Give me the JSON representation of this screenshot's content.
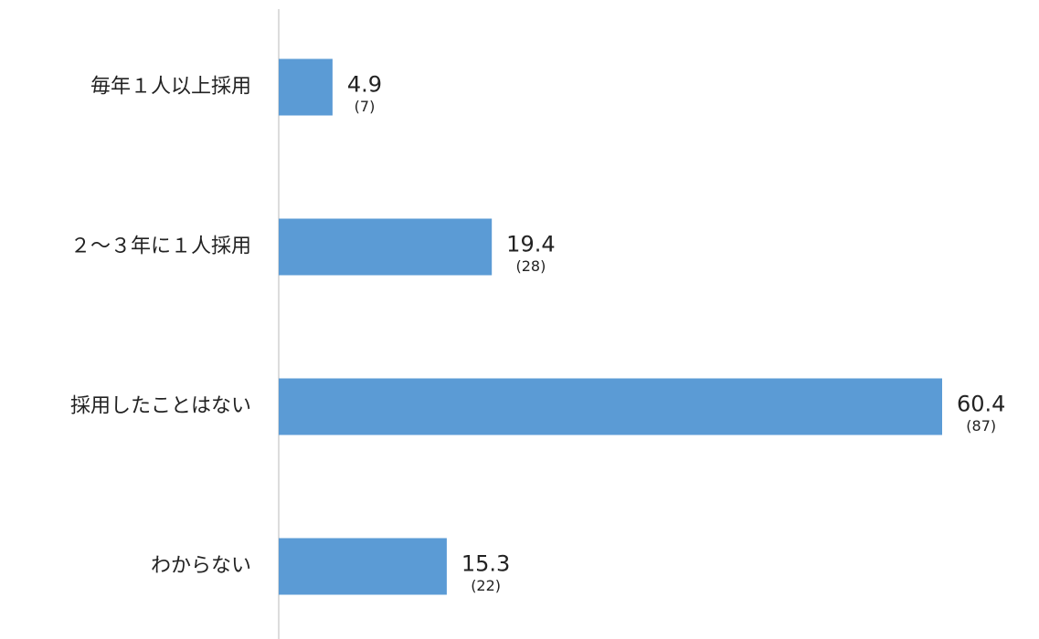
{
  "chart_data": {
    "type": "hbar",
    "categories": [
      "毎年１人以上採用",
      "２～３年に１人採用",
      "採用したことはない",
      "わからない"
    ],
    "values": [
      4.9,
      19.4,
      60.4,
      15.3
    ],
    "count_labels": [
      "(7)",
      "(28)",
      "(87)",
      "(22)"
    ],
    "color": "#5b9bd5"
  }
}
